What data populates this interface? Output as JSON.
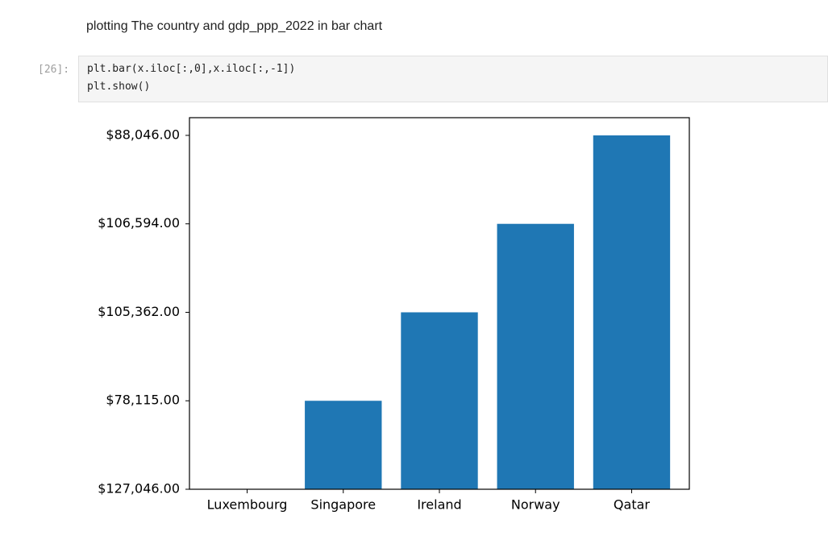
{
  "markdown": "plotting The country and gdp_ppp_2022 in bar chart",
  "cell": {
    "prompt": "[26]:",
    "code": [
      "plt.bar(x.iloc[:,0],x.iloc[:,-1])",
      "plt.show()"
    ]
  },
  "chart_data": {
    "type": "bar",
    "categories": [
      "Luxembourg",
      "Singapore",
      "Ireland",
      "Norway",
      "Qatar"
    ],
    "values": [
      0,
      1,
      2,
      3,
      4
    ],
    "color": "#1f77b4",
    "xlim": [
      -0.6,
      4.6
    ],
    "ylim": [
      0,
      4.2
    ],
    "yticks": [
      {
        "value": 0,
        "label": "$127,046.00"
      },
      {
        "value": 1,
        "label": "$78,115.00"
      },
      {
        "value": 2,
        "label": "$105,362.00"
      },
      {
        "value": 3,
        "label": "$106,594.00"
      },
      {
        "value": 4,
        "label": "$88,046.00"
      }
    ]
  }
}
